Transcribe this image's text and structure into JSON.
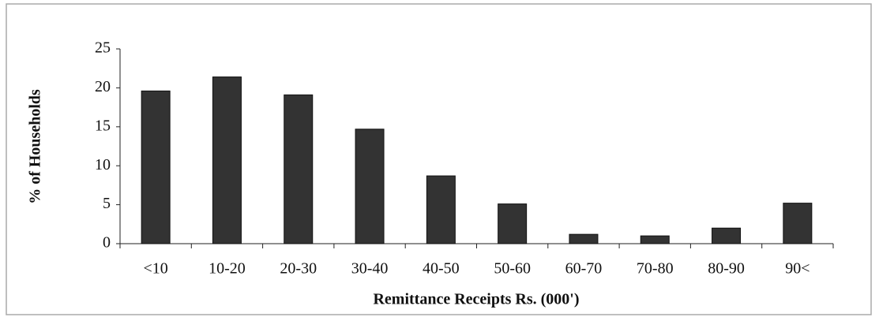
{
  "chart_data": {
    "type": "bar",
    "x_label": "Remittance Receipts Rs. (000')",
    "y_label": "% of Households",
    "categories": [
      "<10",
      "10-20",
      "20-30",
      "30-40",
      "40-50",
      "50-60",
      "60-70",
      "70-80",
      "80-90",
      "90<"
    ],
    "values": [
      19.6,
      21.4,
      19.1,
      14.7,
      8.7,
      5.1,
      1.2,
      1.0,
      2.0,
      5.2
    ],
    "color": "#333333",
    "ylim": [
      0,
      25
    ],
    "yticks": [
      0,
      5,
      10,
      15,
      20,
      25
    ],
    "grid": false
  }
}
